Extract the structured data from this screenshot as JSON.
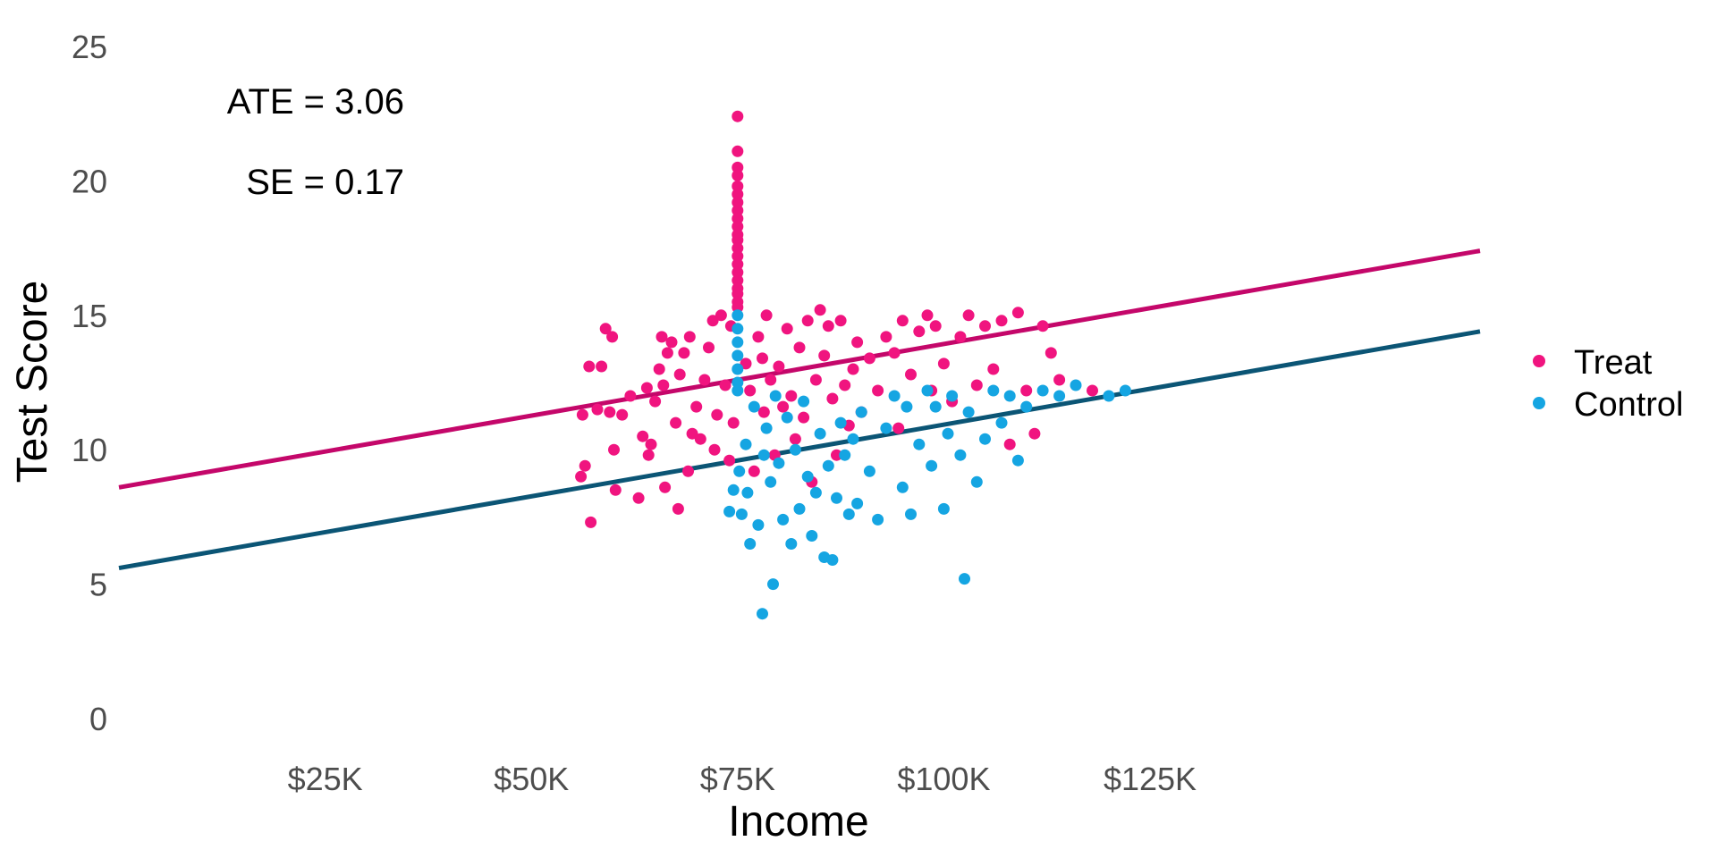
{
  "chart_data": {
    "type": "scatter",
    "xlabel": "Income",
    "ylabel": "Test Score",
    "xlim": [
      0,
      165000
    ],
    "ylim": [
      0,
      25
    ],
    "x_ticks": [
      25000,
      50000,
      75000,
      100000,
      125000
    ],
    "x_tick_labels": [
      "$25K",
      "$50K",
      "$75K",
      "$100K",
      "$125K"
    ],
    "y_ticks": [
      0,
      5,
      10,
      15,
      20,
      25
    ],
    "y_tick_labels": [
      "0",
      "5",
      "10",
      "15",
      "20",
      "25"
    ],
    "grid": false,
    "legend_position": "right",
    "annotations": [
      "ATE = 3.06",
      "SE = 0.17"
    ],
    "series": [
      {
        "name": "Treat",
        "color": "#f0147f",
        "points": [
          [
            75000,
            22.4
          ],
          [
            75000,
            21.1
          ],
          [
            75000,
            20.5
          ],
          [
            75000,
            20.2
          ],
          [
            75000,
            19.8
          ],
          [
            75000,
            19.5
          ],
          [
            75000,
            19.2
          ],
          [
            75000,
            18.9
          ],
          [
            75000,
            18.6
          ],
          [
            75000,
            18.3
          ],
          [
            75000,
            18.0
          ],
          [
            75000,
            17.8
          ],
          [
            75000,
            17.5
          ],
          [
            75000,
            17.2
          ],
          [
            75000,
            16.9
          ],
          [
            75000,
            16.6
          ],
          [
            75000,
            16.3
          ],
          [
            75000,
            16.0
          ],
          [
            75000,
            15.8
          ],
          [
            75000,
            15.5
          ],
          [
            75000,
            15.3
          ],
          [
            56000,
            9.0
          ],
          [
            56500,
            9.4
          ],
          [
            56200,
            11.3
          ],
          [
            57000,
            13.1
          ],
          [
            57200,
            7.3
          ],
          [
            58000,
            11.5
          ],
          [
            58500,
            13.1
          ],
          [
            59000,
            14.5
          ],
          [
            59500,
            11.4
          ],
          [
            59800,
            14.2
          ],
          [
            60000,
            10.0
          ],
          [
            60200,
            8.5
          ],
          [
            61000,
            11.3
          ],
          [
            62000,
            12.0
          ],
          [
            63000,
            8.2
          ],
          [
            63500,
            10.5
          ],
          [
            64000,
            12.3
          ],
          [
            64200,
            9.8
          ],
          [
            64500,
            10.2
          ],
          [
            65000,
            11.8
          ],
          [
            65500,
            13.0
          ],
          [
            65800,
            14.2
          ],
          [
            66000,
            12.4
          ],
          [
            66200,
            8.6
          ],
          [
            66500,
            13.6
          ],
          [
            67000,
            14.0
          ],
          [
            67500,
            11.0
          ],
          [
            67800,
            7.8
          ],
          [
            68000,
            12.8
          ],
          [
            68500,
            13.6
          ],
          [
            69000,
            9.2
          ],
          [
            69200,
            14.2
          ],
          [
            69500,
            10.6
          ],
          [
            70000,
            11.6
          ],
          [
            70500,
            10.4
          ],
          [
            71000,
            12.6
          ],
          [
            71500,
            13.8
          ],
          [
            72000,
            14.8
          ],
          [
            72200,
            10.0
          ],
          [
            72500,
            11.3
          ],
          [
            73000,
            15.0
          ],
          [
            73500,
            12.4
          ],
          [
            74000,
            9.6
          ],
          [
            74200,
            14.6
          ],
          [
            74500,
            11.0
          ],
          [
            76000,
            13.2
          ],
          [
            76500,
            12.2
          ],
          [
            77000,
            9.2
          ],
          [
            77500,
            14.2
          ],
          [
            78000,
            13.4
          ],
          [
            78200,
            11.4
          ],
          [
            78500,
            15.0
          ],
          [
            79000,
            12.6
          ],
          [
            79500,
            9.8
          ],
          [
            80000,
            13.1
          ],
          [
            80500,
            11.6
          ],
          [
            81000,
            14.5
          ],
          [
            81500,
            12.0
          ],
          [
            82000,
            10.4
          ],
          [
            82500,
            13.8
          ],
          [
            83000,
            11.2
          ],
          [
            83500,
            14.8
          ],
          [
            84000,
            8.8
          ],
          [
            84500,
            12.6
          ],
          [
            85000,
            15.2
          ],
          [
            85500,
            13.5
          ],
          [
            86000,
            14.6
          ],
          [
            86500,
            11.9
          ],
          [
            87000,
            9.8
          ],
          [
            87500,
            14.8
          ],
          [
            88000,
            12.4
          ],
          [
            88500,
            10.9
          ],
          [
            89000,
            13.0
          ],
          [
            89500,
            14.0
          ],
          [
            90000,
            11.4
          ],
          [
            91000,
            13.4
          ],
          [
            92000,
            12.2
          ],
          [
            93000,
            14.2
          ],
          [
            94000,
            13.6
          ],
          [
            94500,
            10.8
          ],
          [
            95000,
            14.8
          ],
          [
            96000,
            12.8
          ],
          [
            97000,
            14.4
          ],
          [
            98000,
            15.0
          ],
          [
            98500,
            12.2
          ],
          [
            99000,
            14.6
          ],
          [
            100000,
            13.2
          ],
          [
            101000,
            11.8
          ],
          [
            102000,
            14.2
          ],
          [
            103000,
            15.0
          ],
          [
            104000,
            12.4
          ],
          [
            105000,
            14.6
          ],
          [
            106000,
            13.0
          ],
          [
            107000,
            14.8
          ],
          [
            108000,
            10.2
          ],
          [
            109000,
            15.1
          ],
          [
            110000,
            12.2
          ],
          [
            111000,
            10.6
          ],
          [
            112000,
            14.6
          ],
          [
            113000,
            13.6
          ],
          [
            114000,
            12.6
          ],
          [
            118000,
            12.2
          ]
        ]
      },
      {
        "name": "Control",
        "color": "#15a5e2",
        "points": [
          [
            75000,
            15.0
          ],
          [
            75000,
            14.5
          ],
          [
            75000,
            14.0
          ],
          [
            75000,
            13.5
          ],
          [
            75000,
            13.0
          ],
          [
            75000,
            12.5
          ],
          [
            75000,
            12.2
          ],
          [
            74000,
            7.7
          ],
          [
            74500,
            8.5
          ],
          [
            75200,
            9.2
          ],
          [
            75500,
            7.6
          ],
          [
            76000,
            10.2
          ],
          [
            76200,
            8.4
          ],
          [
            76500,
            6.5
          ],
          [
            77000,
            11.6
          ],
          [
            77500,
            7.2
          ],
          [
            78000,
            3.9
          ],
          [
            78200,
            9.8
          ],
          [
            78500,
            10.8
          ],
          [
            79000,
            8.8
          ],
          [
            79300,
            5.0
          ],
          [
            79600,
            12.0
          ],
          [
            80000,
            9.5
          ],
          [
            80500,
            7.4
          ],
          [
            81000,
            11.2
          ],
          [
            81500,
            6.5
          ],
          [
            82000,
            10.0
          ],
          [
            82500,
            7.8
          ],
          [
            83000,
            11.8
          ],
          [
            83500,
            9.0
          ],
          [
            84000,
            6.8
          ],
          [
            84500,
            8.4
          ],
          [
            85000,
            10.6
          ],
          [
            85500,
            6.0
          ],
          [
            86000,
            9.4
          ],
          [
            86500,
            5.9
          ],
          [
            87000,
            8.2
          ],
          [
            87500,
            11.0
          ],
          [
            88000,
            9.8
          ],
          [
            88500,
            7.6
          ],
          [
            89000,
            10.4
          ],
          [
            89500,
            8.0
          ],
          [
            90000,
            11.4
          ],
          [
            91000,
            9.2
          ],
          [
            92000,
            7.4
          ],
          [
            93000,
            10.8
          ],
          [
            94000,
            12.0
          ],
          [
            95000,
            8.6
          ],
          [
            95500,
            11.6
          ],
          [
            96000,
            7.6
          ],
          [
            97000,
            10.2
          ],
          [
            98000,
            12.2
          ],
          [
            98500,
            9.4
          ],
          [
            99000,
            11.6
          ],
          [
            100000,
            7.8
          ],
          [
            100500,
            10.6
          ],
          [
            101000,
            12.0
          ],
          [
            102000,
            9.8
          ],
          [
            102500,
            5.2
          ],
          [
            103000,
            11.4
          ],
          [
            104000,
            8.8
          ],
          [
            105000,
            10.4
          ],
          [
            106000,
            12.2
          ],
          [
            107000,
            11.0
          ],
          [
            108000,
            12.0
          ],
          [
            109000,
            9.6
          ],
          [
            110000,
            11.6
          ],
          [
            112000,
            12.2
          ],
          [
            114000,
            12.0
          ],
          [
            116000,
            12.4
          ],
          [
            120000,
            12.0
          ],
          [
            122000,
            12.2
          ]
        ]
      }
    ],
    "lines": [
      {
        "name": "Treat",
        "color": "#c4076a",
        "x": [
          0,
          165000
        ],
        "y": [
          8.6,
          17.4
        ]
      },
      {
        "name": "Control",
        "color": "#0b5575",
        "x": [
          0,
          165000
        ],
        "y": [
          5.6,
          14.4
        ]
      }
    ]
  }
}
